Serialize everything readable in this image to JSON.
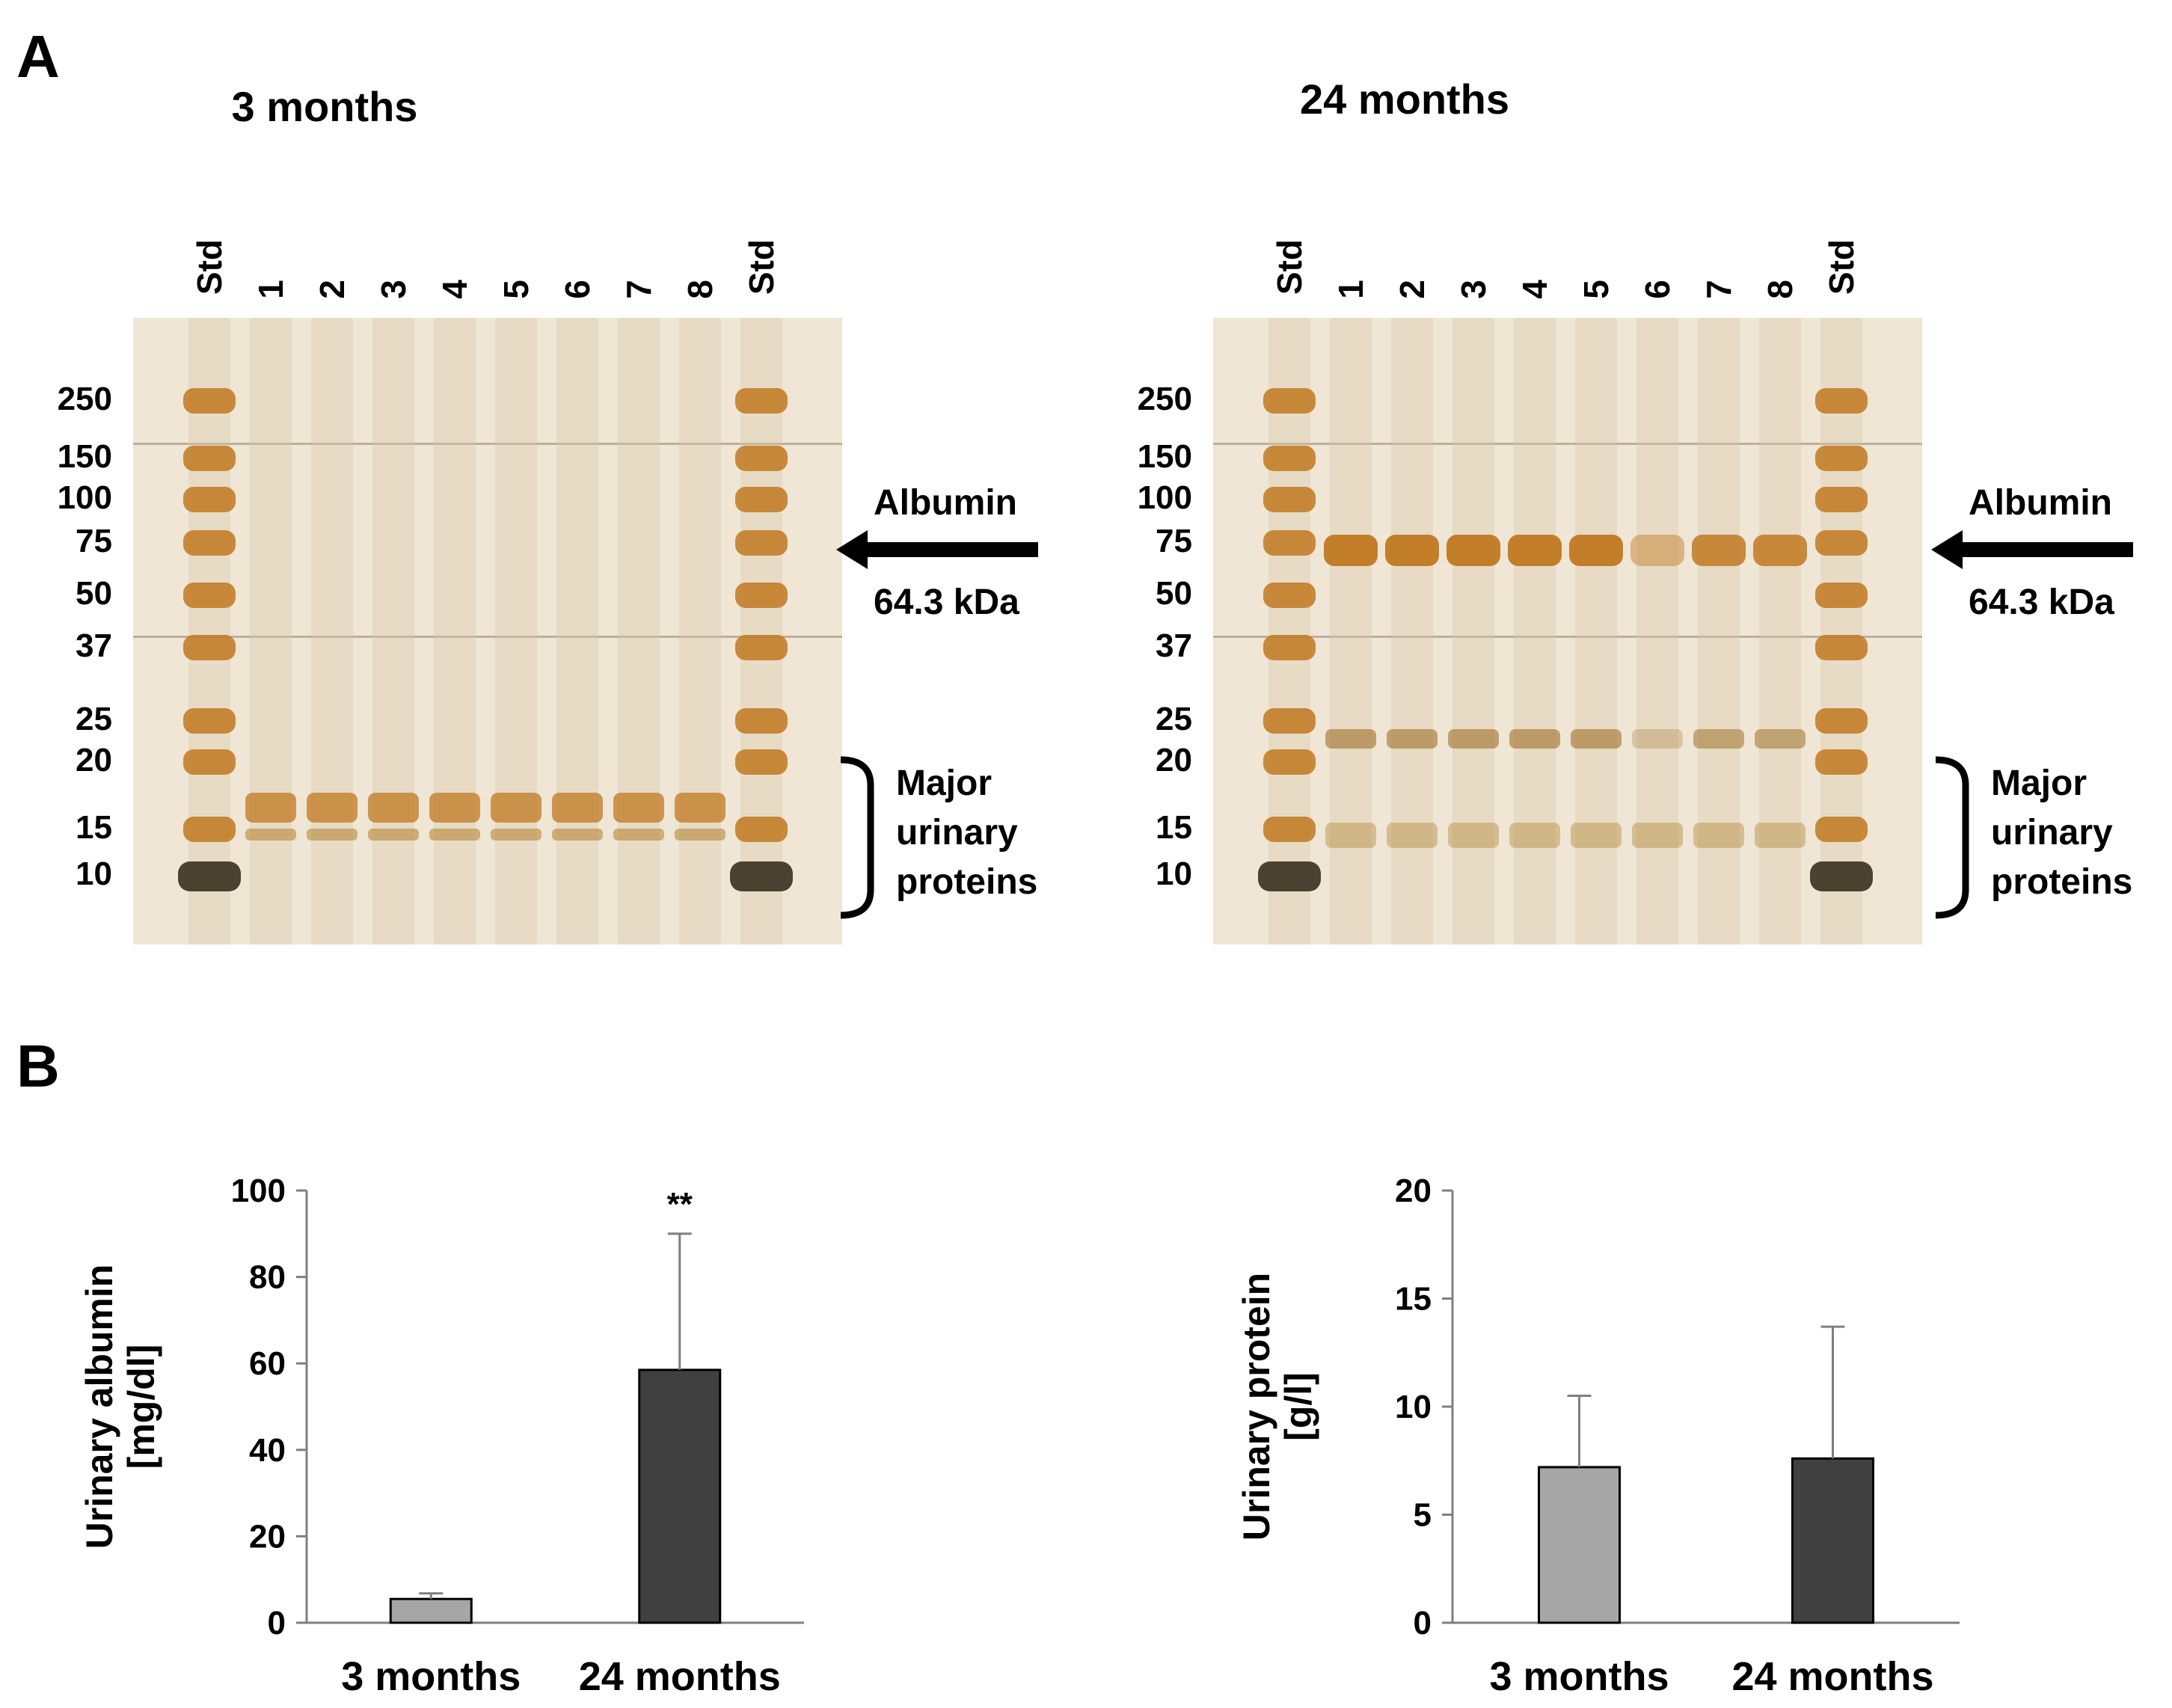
{
  "panels": {
    "a_label": "A",
    "b_label": "B"
  },
  "gels": [
    {
      "title": "3 months",
      "lanes": [
        "Std",
        "1",
        "2",
        "3",
        "4",
        "5",
        "6",
        "7",
        "8",
        "Std"
      ],
      "markers": [
        "250",
        "150",
        "100",
        "75",
        "50",
        "37",
        "25",
        "20",
        "15",
        "10"
      ],
      "albumin_label": "Albumin",
      "albumin_kda": "64.3 kDa",
      "mup_lines": [
        "Major",
        "urinary",
        "proteins"
      ]
    },
    {
      "title": "24 months",
      "lanes": [
        "Std",
        "1",
        "2",
        "3",
        "4",
        "5",
        "6",
        "7",
        "8",
        "Std"
      ],
      "markers": [
        "250",
        "150",
        "100",
        "75",
        "50",
        "37",
        "25",
        "20",
        "15",
        "10"
      ],
      "albumin_label": "Albumin",
      "albumin_kda": "64.3 kDa",
      "mup_lines": [
        "Major",
        "urinary",
        "proteins"
      ]
    }
  ],
  "colors": {
    "bar_3_months": "#a6a6a6",
    "bar_24_months": "#404040",
    "gel_background": "#efe6d6",
    "band": "#c07820"
  },
  "chart_data": [
    {
      "type": "bar",
      "categories": [
        "3 months",
        "24 months"
      ],
      "values": [
        5.5,
        58.5
      ],
      "errors": [
        1.3,
        31.5
      ],
      "ylim": [
        0,
        100
      ],
      "yticks": [
        "0",
        "20",
        "40",
        "60",
        "80",
        "100"
      ],
      "ylabel_lines": [
        "Urinary albumin",
        "[mg/dl]"
      ],
      "annotation": "**",
      "annotation_category": "24 months"
    },
    {
      "type": "bar",
      "categories": [
        "3 months",
        "24 months"
      ],
      "values": [
        7.2,
        7.6
      ],
      "errors": [
        3.3,
        6.1
      ],
      "ylim": [
        0,
        20
      ],
      "yticks": [
        "0",
        "5",
        "10",
        "15",
        "20"
      ],
      "ylabel_lines": [
        "Urinary protein",
        "[g/l]"
      ]
    }
  ]
}
